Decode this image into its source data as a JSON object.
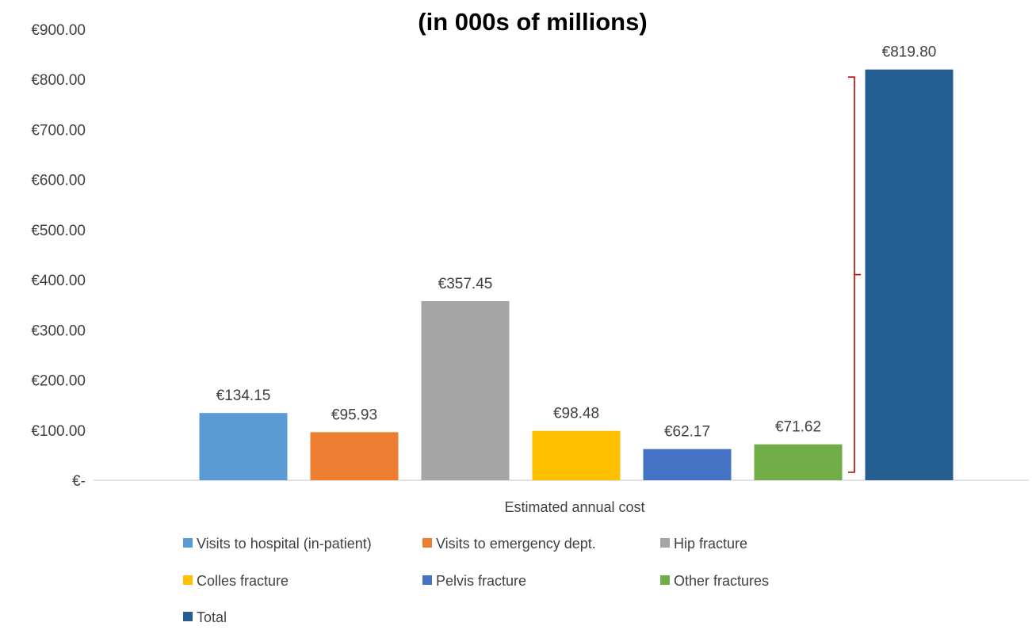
{
  "chart_data": {
    "type": "bar",
    "title": "(in 000s of millions)",
    "xlabel": "Estimated annual cost",
    "ylabel": "",
    "ylim": [
      0,
      900
    ],
    "yticks": [
      {
        "value": 0,
        "label": "€-"
      },
      {
        "value": 100,
        "label": "€100.00"
      },
      {
        "value": 200,
        "label": "€200.00"
      },
      {
        "value": 300,
        "label": "€300.00"
      },
      {
        "value": 400,
        "label": "€400.00"
      },
      {
        "value": 500,
        "label": "€500.00"
      },
      {
        "value": 600,
        "label": "€600.00"
      },
      {
        "value": 700,
        "label": "€700.00"
      },
      {
        "value": 800,
        "label": "€800.00"
      },
      {
        "value": 900,
        "label": "€900.00"
      }
    ],
    "grid": false,
    "legend_position": "bottom",
    "categories": [
      "Estimated annual cost"
    ],
    "series": [
      {
        "name": "Visits to hospital (in-patient)",
        "values": [
          134.15
        ],
        "label": "€134.15",
        "color": "#5B9BD5"
      },
      {
        "name": "Visits to emergency dept.",
        "values": [
          95.93
        ],
        "label": "€95.93",
        "color": "#ED7D31"
      },
      {
        "name": "Hip fracture",
        "values": [
          357.45
        ],
        "label": "€357.45",
        "color": "#A5A5A5"
      },
      {
        "name": "Colles fracture",
        "values": [
          98.48
        ],
        "label": "€98.48",
        "color": "#FFC000"
      },
      {
        "name": "Pelvis fracture",
        "values": [
          62.17
        ],
        "label": "€62.17",
        "color": "#4472C4"
      },
      {
        "name": "Other fractures",
        "values": [
          71.62
        ],
        "label": "€71.62",
        "color": "#70AD47"
      },
      {
        "name": "Total",
        "values": [
          819.8
        ],
        "label": "€819.80",
        "color": "#255E91"
      }
    ],
    "annotations": [
      {
        "type": "bracket",
        "from_value": 0,
        "to_value": 800,
        "between_series": [
          "Other fractures",
          "Total"
        ],
        "color": "#C00000"
      }
    ]
  }
}
